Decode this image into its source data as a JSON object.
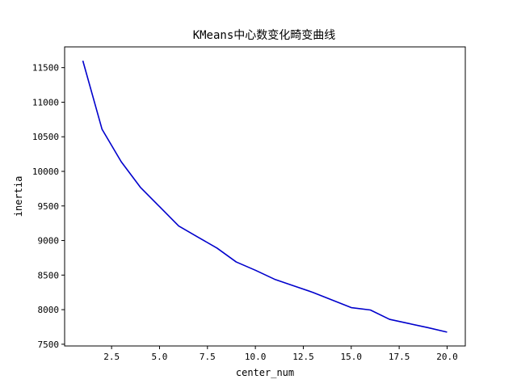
{
  "chart_data": {
    "type": "line",
    "title": "KMeans中心数变化畸变曲线",
    "xlabel": "center_num",
    "ylabel": "inertia",
    "xlim": [
      0.05,
      20.95
    ],
    "ylim": [
      7475,
      11800
    ],
    "xticks": [
      2.5,
      5.0,
      7.5,
      10.0,
      12.5,
      15.0,
      17.5,
      20.0
    ],
    "xtick_labels": [
      "2.5",
      "5.0",
      "7.5",
      "10.0",
      "12.5",
      "15.0",
      "17.5",
      "20.0"
    ],
    "yticks": [
      7500,
      8000,
      8500,
      9000,
      9500,
      10000,
      10500,
      11000,
      11500
    ],
    "ytick_labels": [
      "7500",
      "8000",
      "8500",
      "9000",
      "9500",
      "10000",
      "10500",
      "11000",
      "11500"
    ],
    "grid": false,
    "series": [
      {
        "color": "#0000cc",
        "x": [
          1,
          2,
          3,
          4,
          5,
          6,
          7,
          8,
          9,
          10,
          11,
          12,
          13,
          14,
          15,
          16,
          17,
          18,
          19,
          20
        ],
        "values": [
          11600,
          10610,
          10140,
          9770,
          9490,
          9210,
          9050,
          8890,
          8690,
          8570,
          8440,
          8345,
          8250,
          8140,
          8030,
          7995,
          7860,
          7800,
          7740,
          7675
        ]
      }
    ]
  }
}
